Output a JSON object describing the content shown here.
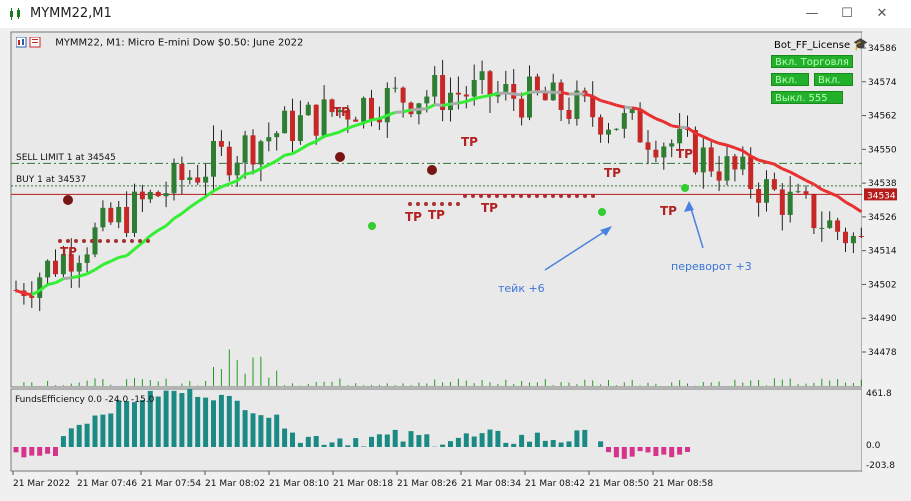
{
  "window": {
    "title": "MYMM22,M1",
    "minimize": "—",
    "maximize": "☐",
    "close": "✕"
  },
  "chart": {
    "info": "MYMM22, M1:  Micro E-mini Dow $0.50: June 2022",
    "indicator_name": "Bot_FF_License",
    "bot_buttons": [
      "Вкл. Торговля",
      "Вкл. все",
      "Вкл. все",
      "Выкл. 555"
    ],
    "price_labels": [
      "34586",
      "34574",
      "34562",
      "34550",
      "34538",
      "34526",
      "34514",
      "34502",
      "34490",
      "34478"
    ],
    "current_price": "34534",
    "levels": {
      "sell_limit": "SELL LIMIT  1 at 34545",
      "buy": "BUY  1 at 34537"
    },
    "annotations": {
      "take": "тейк +6",
      "reverse": "переворот +3"
    },
    "tp_label": "TP",
    "time_labels": [
      "21 Mar 2022",
      "21 Mar 07:46",
      "21 Mar 07:54",
      "21 Mar 08:02",
      "21 Mar 08:10",
      "21 Mar 08:18",
      "21 Mar 08:26",
      "21 Mar 08:34",
      "21 Mar 08:42",
      "21 Mar 08:50",
      "21 Mar 08:58"
    ],
    "subwindow": {
      "label": "FundsEfficiency 0.0 -24.0 -15.0",
      "scale": [
        "461.8",
        "0.0",
        "-203.8"
      ]
    }
  },
  "colors": {
    "bull": "#2e7d32",
    "bear": "#c62828",
    "ma_up": "#33ee33",
    "ma_flat": "#aaaaaa",
    "hist_pos": "#1b8a84",
    "hist_neg": "#d6338a",
    "level": "#2e7d32",
    "price_line": "#b71c1c"
  }
}
